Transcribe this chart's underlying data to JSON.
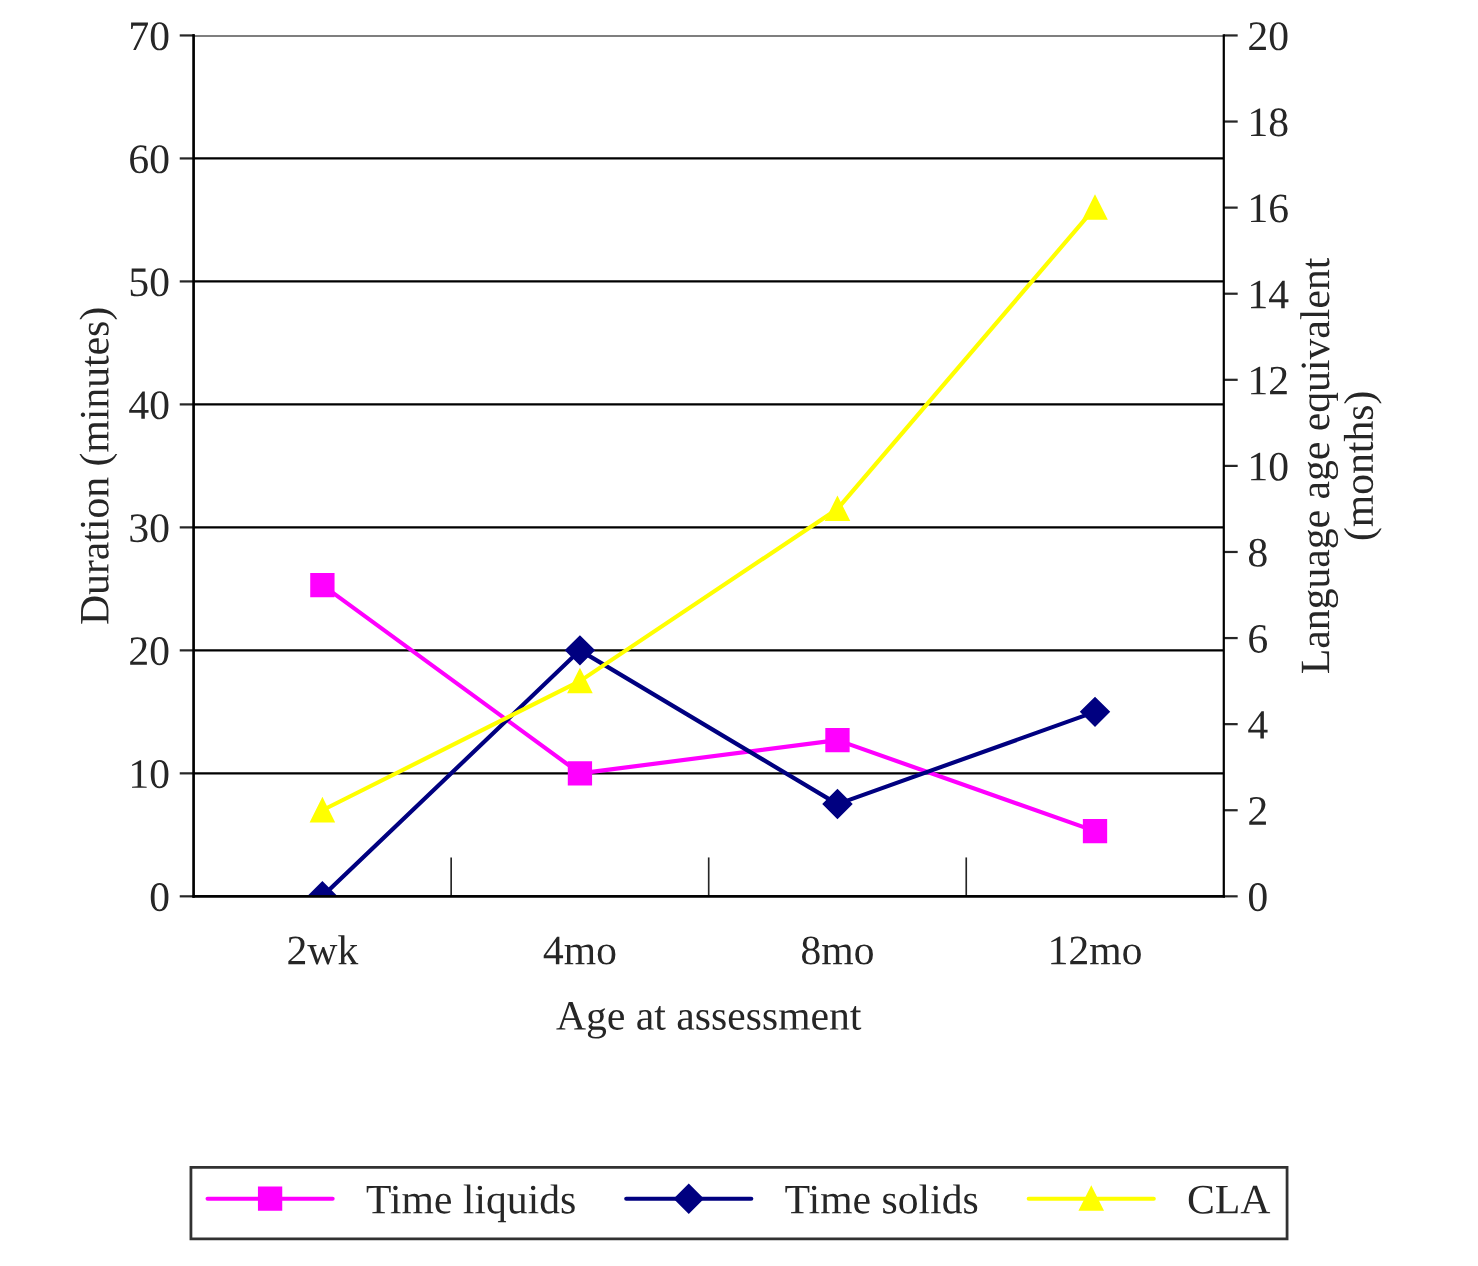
{
  "chart_data": {
    "type": "line",
    "xlabel": "Age at assessment",
    "ylabel": "Duration (minutes)",
    "y2label": "Language age equivalent\n(months)",
    "categories": [
      "2wk",
      "4mo",
      "8mo",
      "12mo"
    ],
    "series": [
      {
        "name": "Time liquids",
        "color": "#ff00ff",
        "marker": "square",
        "values": [
          25.3,
          10,
          12.7,
          5.3
        ]
      },
      {
        "name": "Time solids",
        "color": "#000080",
        "marker": "diamond",
        "values": [
          0,
          20,
          7.5,
          15
        ]
      },
      {
        "name": "CLA",
        "color": "#ffff00",
        "marker": "triangle",
        "axis": "y2",
        "values": [
          2,
          5,
          9,
          16
        ]
      }
    ],
    "ylim": [
      0,
      70
    ],
    "yticks": [
      0,
      10,
      20,
      30,
      40,
      50,
      60,
      70
    ],
    "y2lim": [
      0,
      20
    ],
    "y2ticks": [
      0,
      2,
      4,
      6,
      8,
      10,
      12,
      14,
      16,
      18,
      20
    ],
    "grid": "y",
    "legend": "bottom",
    "line_style": "solid"
  }
}
